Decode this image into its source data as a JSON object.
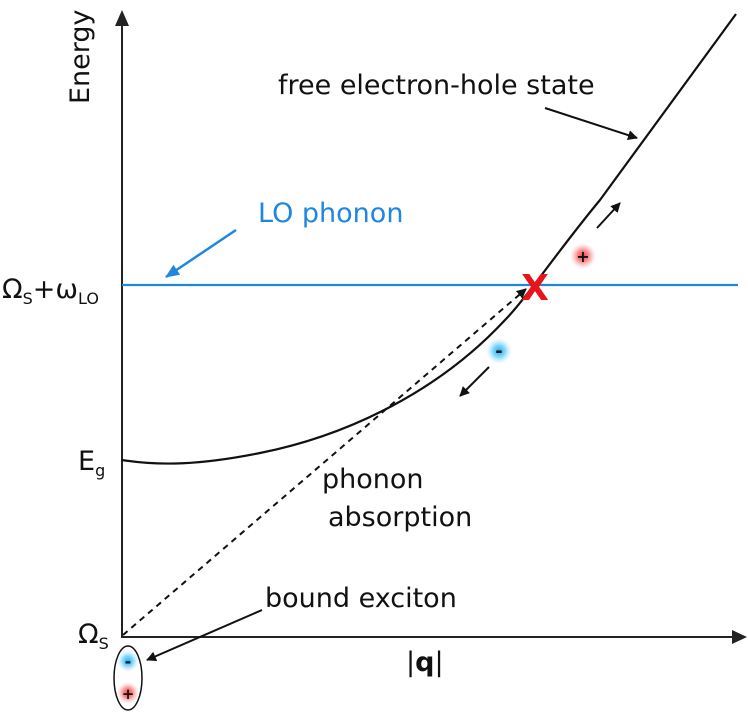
{
  "axes": {
    "y_label": "Energy",
    "x_label": "|q|",
    "x_label_open": "|",
    "x_label_bold": "q",
    "x_label_close": "|"
  },
  "levels": {
    "omega_s_lo": {
      "main": "Ω",
      "sub1": "S",
      "plus": "+ω",
      "sub2": "LO"
    },
    "e_g": {
      "main": "E",
      "sub": "g"
    },
    "omega_s": {
      "main": "Ω",
      "sub": "S"
    }
  },
  "annotations": {
    "free_state": "free electron-hole state",
    "lo_phonon": "LO phonon",
    "phonon_absorption_line1": "phonon",
    "phonon_absorption_line2": "absorption",
    "bound_exciton": "bound exciton"
  },
  "markers": {
    "crossing": "X",
    "minus": "-",
    "plus": "+"
  },
  "colors": {
    "lo_line": "#1f87e0",
    "crossing": "#e8141c",
    "hole_glow": "#f25a5a",
    "electron_glow": "#36b8f0",
    "axis": "#222222"
  }
}
